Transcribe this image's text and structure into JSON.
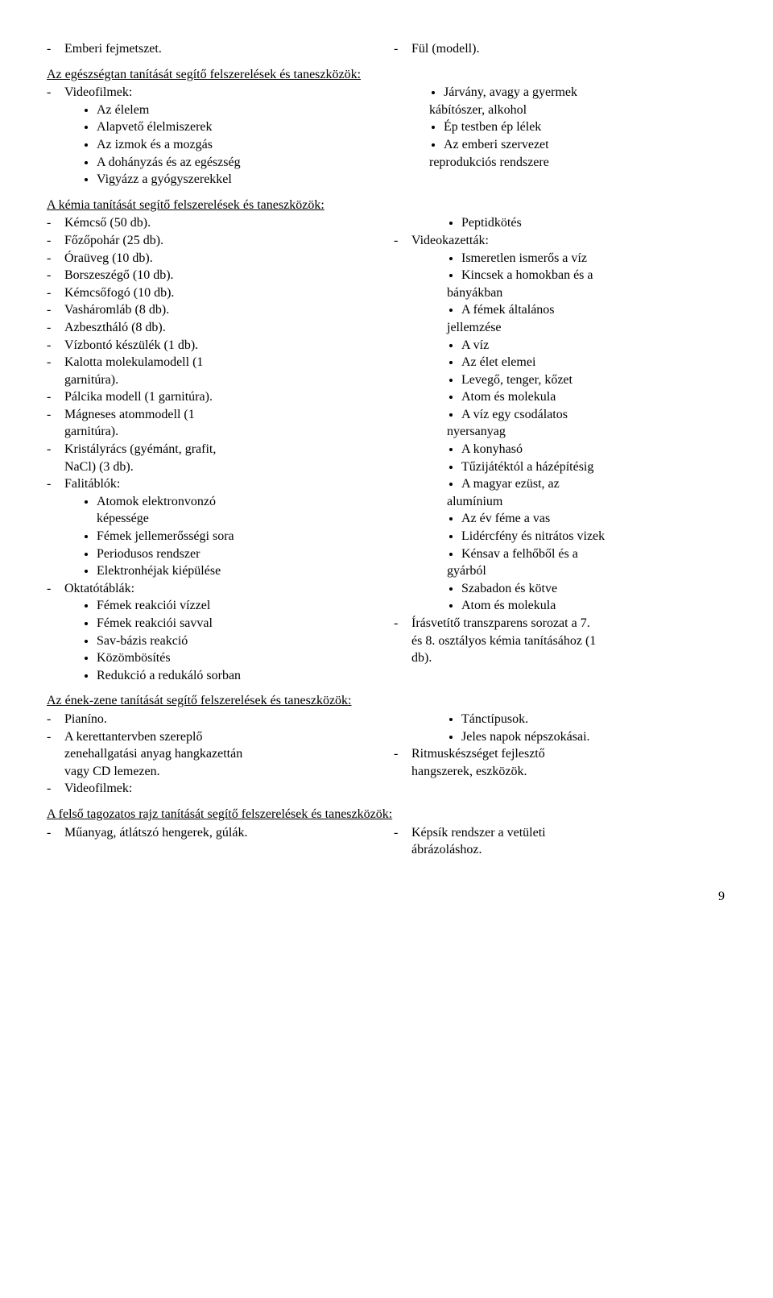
{
  "top": {
    "left": "Emberi fejmetszet.",
    "right": "Fül (modell)."
  },
  "health": {
    "heading": "Az egészségtan tanítását segítő felszerelések és taneszközök:",
    "left": {
      "item1": "Videofilmek:",
      "b1": "Az élelem",
      "b2": "Alapvető élelmiszerek",
      "b3": "Az izmok és a mozgás",
      "b4": "A dohányzás és az egészség",
      "b5": "Vigyázz a gyógyszerekkel"
    },
    "right": {
      "b1a": "Járvány, avagy a gyermek",
      "b1b": "kábítószer, alkohol",
      "b2": "Ép testben ép lélek",
      "b3a": "Az emberi szervezet",
      "b3b": "reprodukciós rendszere"
    }
  },
  "chem": {
    "heading": "A kémia tanítását segítő felszerelések és taneszközök:",
    "left": {
      "i1": "Kémcső (50 db).",
      "i2": "Főzőpohár (25 db).",
      "i3": "Óraüveg  (10 db).",
      "i4": "Borszeszégő (10 db).",
      "i5": "Kémcsőfogó (10 db).",
      "i6": "Vasháromláb (8 db).",
      "i7": "Azbesztháló (8 db).",
      "i8": "Vízbontó készülék (1 db).",
      "i9a": "Kalotta molekulamodell (1",
      "i9b": "garnitúra).",
      "i10": "Pálcika modell (1 garnitúra).",
      "i11a": "Mágneses atommodell (1",
      "i11b": "garnitúra).",
      "i12a": "Kristályrács (gyémánt, grafit,",
      "i12b": "NaCl) (3 db).",
      "i13": "Falitáblók:",
      "b13a": "Atomok elektronvonzó",
      "b13aL2": "képessége",
      "b13b": "Fémek jellemerősségi sora",
      "b13c": "Periodusos rendszer",
      "b13d": "Elektronhéjak kiépülése",
      "i14": "Oktatótáblák:",
      "b14a": "Fémek reakciói vízzel",
      "b14b": "Fémek reakciói savval",
      "b14c": "Sav-bázis reakció",
      "b14d": "Közömbösítés",
      "b14e": "Redukció a redukáló sorban"
    },
    "right": {
      "b0": "Peptidkötés",
      "i1": "Videokazetták:",
      "b1": "Ismeretlen ismerős a víz",
      "b2a": "Kincsek a homokban és a",
      "b2b": "bányákban",
      "b3a": "A fémek általános",
      "b3b": "jellemzése",
      "b4": "A víz",
      "b5": "Az élet elemei",
      "b6": "Levegő, tenger, kőzet",
      "b7": "Atom és molekula",
      "b8a": "A víz egy csodálatos",
      "b8b": "nyersanyag",
      "b9": "A konyhasó",
      "b10": "Tűzijátéktól a házépítésig",
      "b11a": "A magyar ezüst, az",
      "b11b": "alumínium",
      "b12": "Az év féme a vas",
      "b13": "Lidércfény és nitrátos vizek",
      "b14a": "Kénsav a felhőből és a",
      "b14b": "gyárból",
      "b15": "Szabadon és kötve",
      "b16": "Atom és molekula",
      "i2a": "Írásvetítő transzparens sorozat a 7.",
      "i2b": "és 8. osztályos kémia tanításához (1",
      "i2c": "db)."
    }
  },
  "music": {
    "heading": "Az ének-zene tanítását segítő felszerelések és taneszközök:",
    "left": {
      "i1": "Pianíno.",
      "i2a": "A kerettantervben szereplő",
      "i2b": "zenehallgatási anyag hangkazettán",
      "i2c": "vagy CD lemezen.",
      "i3": "Videofilmek:"
    },
    "right": {
      "b1": "Tánctípusok.",
      "b2": "Jeles napok népszokásai.",
      "i1a": "Ritmuskészséget fejlesztő",
      "i1b": "hangszerek, eszközök."
    }
  },
  "art": {
    "heading": "A felső tagozatos rajz tanítását segítő felszerelések és taneszközök:",
    "left": "Műanyag, átlátszó hengerek, gúlák.",
    "rightA": "Képsík rendszer a vetületi",
    "rightB": "ábrázoláshoz."
  },
  "pageNumber": "9"
}
